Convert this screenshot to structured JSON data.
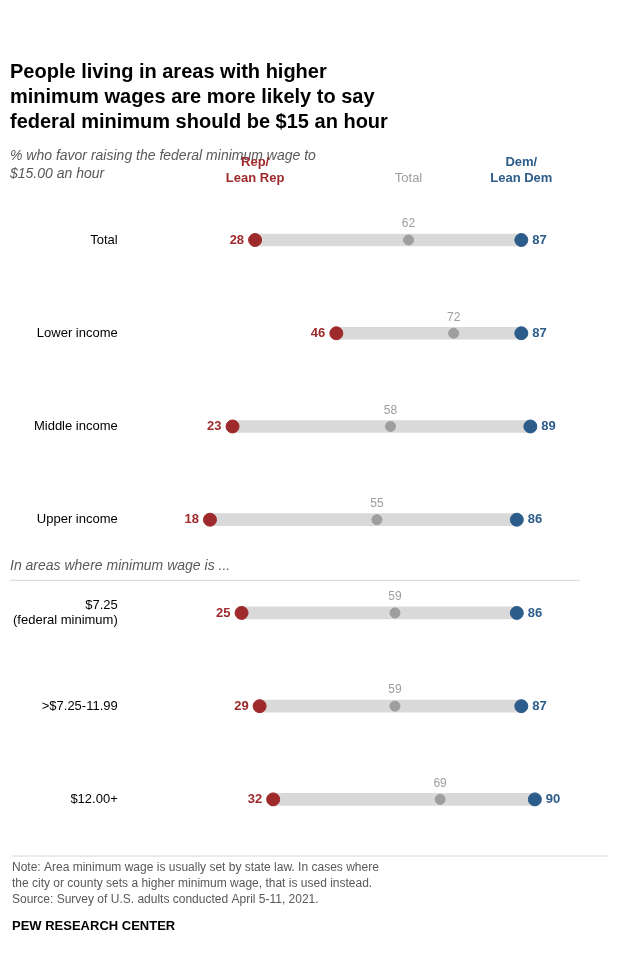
{
  "chart_data": {
    "type": "dumbbell",
    "orientation": "horizontal",
    "title": "People living in areas with higher\nminimum wages are more likely to say\nfederal minimum should be $15 an hour",
    "subtitle": "% who favor raising the federal minimum wage to\n$15.00 an hour",
    "categories": [
      "Total",
      "Lower income",
      "Middle income",
      "Upper income",
      "$7.25\n(federal minimum)",
      ">$7.25-11.99",
      "$12.00+"
    ],
    "series": [
      {
        "name": "Rep/\nLean Rep",
        "color": "#9e2a2b",
        "values": [
          28,
          46,
          23,
          18,
          25,
          29,
          32
        ]
      },
      {
        "name": "Total",
        "color": "#9e9e9e",
        "values": [
          62,
          72,
          58,
          55,
          59,
          59,
          69
        ]
      },
      {
        "name": "Dem/\nLean Dem",
        "color": "#2b5c8a",
        "values": [
          87,
          87,
          89,
          86,
          86,
          87,
          90
        ]
      }
    ],
    "color": "#d9d9d9",
    "xlim": [
      0,
      100
    ],
    "grid": false,
    "data_labels": true,
    "tick_labels": "y",
    "annotations": [
      "In areas where minimum wage is ...",
      "Note: Area minimum wage is usually set by state law. In cases where\nthe city or county sets a higher minimum wage, that is used instead.\nSource: Survey of U.S. adults conducted April 5-11, 2021.",
      "PEW RESEARCH CENTER"
    ]
  }
}
